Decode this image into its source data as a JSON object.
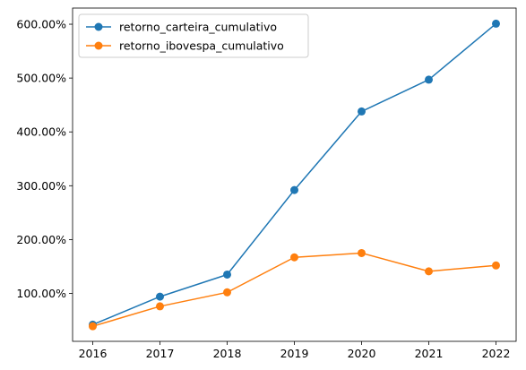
{
  "chart_data": {
    "type": "line",
    "title": "",
    "xlabel": "",
    "ylabel": "",
    "x": [
      2016,
      2017,
      2018,
      2019,
      2020,
      2021,
      2022
    ],
    "x_tick_labels": [
      "2016",
      "2017",
      "2018",
      "2019",
      "2020",
      "2021",
      "2022"
    ],
    "y_ticks": [
      100,
      200,
      300,
      400,
      500,
      600
    ],
    "y_tick_labels": [
      "100.00%",
      "200.00%",
      "300.00%",
      "400.00%",
      "500.00%",
      "600.00%"
    ],
    "xlim": [
      2015.7,
      2022.3
    ],
    "ylim": [
      11,
      630
    ],
    "y_unit": "%",
    "grid": false,
    "legend_position": "top-left",
    "series": [
      {
        "name": "retorno_carteira_cumulativo",
        "color": "#1f77b4",
        "marker": "circle",
        "values": [
          42,
          94,
          135,
          292,
          438,
          497,
          601
        ]
      },
      {
        "name": "retorno_ibovespa_cumulativo",
        "color": "#ff7f0e",
        "marker": "circle",
        "values": [
          39,
          76,
          102,
          167,
          175,
          141,
          152
        ]
      }
    ]
  }
}
